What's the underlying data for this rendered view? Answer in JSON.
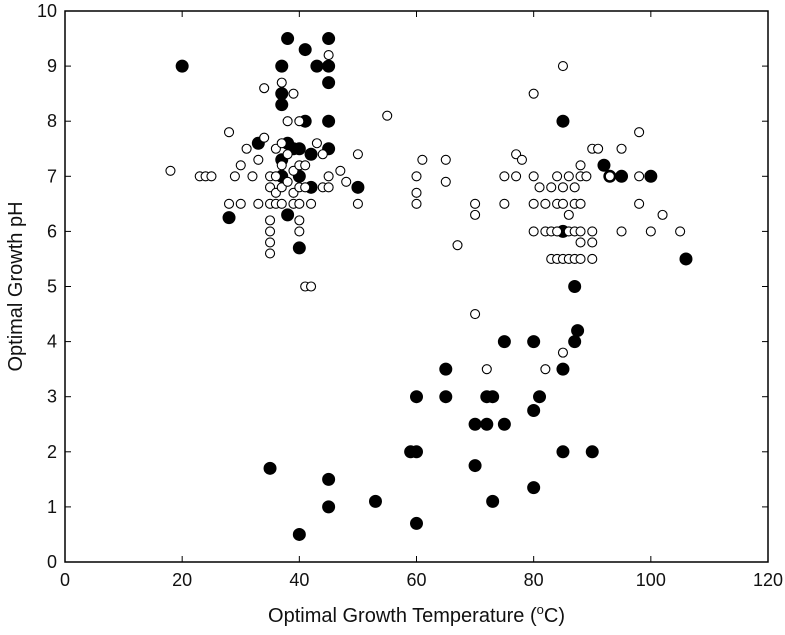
{
  "chart_data": {
    "type": "scatter",
    "title": "",
    "xlabel": {
      "prefix": "Optimal Growth Temperature (",
      "superscript": "o",
      "suffix": "C)"
    },
    "ylabel": "Optimal Growth pH",
    "xlim": [
      0,
      120
    ],
    "ylim": [
      0,
      10
    ],
    "x_ticks": [
      0,
      20,
      40,
      60,
      80,
      100,
      120
    ],
    "y_ticks": [
      0,
      1,
      2,
      3,
      4,
      5,
      6,
      7,
      8,
      9,
      10
    ],
    "grid": false,
    "legend": "none",
    "series": [
      {
        "marker": "filled-circle",
        "color": "#000000",
        "points": [
          [
            20,
            9
          ],
          [
            28,
            6.25
          ],
          [
            33,
            7.6
          ],
          [
            35,
            1.7
          ],
          [
            37,
            9
          ],
          [
            37,
            8.5
          ],
          [
            37,
            8.3
          ],
          [
            37,
            7.3
          ],
          [
            37,
            7
          ],
          [
            38,
            7.6
          ],
          [
            38,
            9.5
          ],
          [
            38,
            6.3
          ],
          [
            39,
            7.5
          ],
          [
            40,
            7.5
          ],
          [
            40,
            7
          ],
          [
            40,
            5.7
          ],
          [
            40,
            0.5
          ],
          [
            41,
            9.3
          ],
          [
            41,
            8
          ],
          [
            42,
            6.8
          ],
          [
            42,
            7.4
          ],
          [
            43,
            9
          ],
          [
            45,
            9.5
          ],
          [
            45,
            9
          ],
          [
            45,
            8.7
          ],
          [
            45,
            8
          ],
          [
            45,
            7.5
          ],
          [
            45,
            1.5
          ],
          [
            45,
            1
          ],
          [
            50,
            6.8
          ],
          [
            53,
            1.1
          ],
          [
            59,
            2
          ],
          [
            60,
            2
          ],
          [
            60,
            3
          ],
          [
            60,
            0.7
          ],
          [
            65,
            3.5
          ],
          [
            65,
            3
          ],
          [
            70,
            2.5
          ],
          [
            70,
            1.75
          ],
          [
            72,
            3
          ],
          [
            72,
            2.5
          ],
          [
            73,
            3
          ],
          [
            73,
            1.1
          ],
          [
            75,
            4
          ],
          [
            75,
            2.5
          ],
          [
            80,
            4
          ],
          [
            80,
            2.75
          ],
          [
            80,
            1.35
          ],
          [
            81,
            3
          ],
          [
            85,
            8
          ],
          [
            85,
            6
          ],
          [
            85,
            3.5
          ],
          [
            85,
            2
          ],
          [
            87,
            4
          ],
          [
            87,
            5
          ],
          [
            87.5,
            4.2
          ],
          [
            90,
            2
          ],
          [
            92,
            7.2
          ],
          [
            93,
            7
          ],
          [
            95,
            7
          ],
          [
            100,
            7
          ],
          [
            106,
            5.5
          ]
        ]
      },
      {
        "marker": "open-circle",
        "color": "#000000",
        "points": [
          [
            18,
            7.1
          ],
          [
            23,
            7
          ],
          [
            24,
            7
          ],
          [
            25,
            7
          ],
          [
            28,
            7.8
          ],
          [
            28,
            6.5
          ],
          [
            29,
            7
          ],
          [
            30,
            7.2
          ],
          [
            30,
            6.5
          ],
          [
            31,
            7.5
          ],
          [
            32,
            7
          ],
          [
            33,
            7.3
          ],
          [
            33,
            6.5
          ],
          [
            34,
            7.7
          ],
          [
            34,
            8.6
          ],
          [
            35,
            7
          ],
          [
            35,
            6.8
          ],
          [
            35,
            6.5
          ],
          [
            35,
            6
          ],
          [
            35,
            5.8
          ],
          [
            35,
            5.6
          ],
          [
            35,
            6.2
          ],
          [
            36,
            7.5
          ],
          [
            36,
            7
          ],
          [
            36,
            6.7
          ],
          [
            36,
            6.5
          ],
          [
            37,
            8.7
          ],
          [
            37,
            7.6
          ],
          [
            37,
            7.2
          ],
          [
            37,
            6.8
          ],
          [
            37,
            6.5
          ],
          [
            38,
            8
          ],
          [
            38,
            7.4
          ],
          [
            38,
            6.9
          ],
          [
            39,
            7.1
          ],
          [
            39,
            6.7
          ],
          [
            39,
            6.5
          ],
          [
            39,
            8.5
          ],
          [
            40,
            8
          ],
          [
            40,
            7.2
          ],
          [
            40,
            6.8
          ],
          [
            40,
            6.5
          ],
          [
            40,
            6.2
          ],
          [
            40,
            6
          ],
          [
            41,
            7.2
          ],
          [
            41,
            6.8
          ],
          [
            41,
            5
          ],
          [
            42,
            5
          ],
          [
            42,
            6.5
          ],
          [
            43,
            7.6
          ],
          [
            44,
            7.4
          ],
          [
            44,
            6.8
          ],
          [
            45,
            9.2
          ],
          [
            45,
            7
          ],
          [
            45,
            6.8
          ],
          [
            47,
            7.1
          ],
          [
            48,
            6.9
          ],
          [
            50,
            7.4
          ],
          [
            50,
            6.5
          ],
          [
            55,
            8.1
          ],
          [
            60,
            7
          ],
          [
            60,
            6.7
          ],
          [
            60,
            6.5
          ],
          [
            61,
            7.3
          ],
          [
            65,
            7.3
          ],
          [
            65,
            6.9
          ],
          [
            67,
            5.75
          ],
          [
            70,
            6.5
          ],
          [
            70,
            6.3
          ],
          [
            70,
            4.5
          ],
          [
            72,
            3.5
          ],
          [
            75,
            7
          ],
          [
            75,
            6.5
          ],
          [
            77,
            7
          ],
          [
            77,
            7.4
          ],
          [
            78,
            7.3
          ],
          [
            80,
            8.5
          ],
          [
            80,
            7
          ],
          [
            80,
            6.5
          ],
          [
            80,
            6
          ],
          [
            81,
            6.8
          ],
          [
            82,
            6.5
          ],
          [
            82,
            6
          ],
          [
            82,
            3.5
          ],
          [
            83,
            6.8
          ],
          [
            83,
            6
          ],
          [
            83,
            5.5
          ],
          [
            84,
            7
          ],
          [
            84,
            6.5
          ],
          [
            84,
            6
          ],
          [
            84,
            5.5
          ],
          [
            85,
            9
          ],
          [
            85,
            6.8
          ],
          [
            85,
            6.5
          ],
          [
            85,
            5.5
          ],
          [
            85,
            3.8
          ],
          [
            86,
            7
          ],
          [
            86,
            6.3
          ],
          [
            86,
            6
          ],
          [
            86,
            5.5
          ],
          [
            87,
            6.8
          ],
          [
            87,
            6.5
          ],
          [
            87,
            6
          ],
          [
            87,
            5.5
          ],
          [
            88,
            7
          ],
          [
            88,
            7.2
          ],
          [
            88,
            6.5
          ],
          [
            88,
            5.8
          ],
          [
            88,
            6
          ],
          [
            88,
            5.5
          ],
          [
            89,
            7
          ],
          [
            90,
            7.5
          ],
          [
            90,
            6
          ],
          [
            90,
            5.8
          ],
          [
            90,
            5.5
          ],
          [
            91,
            7.5
          ],
          [
            93,
            7
          ],
          [
            95,
            7.5
          ],
          [
            95,
            6
          ],
          [
            98,
            7.8
          ],
          [
            98,
            7
          ],
          [
            98,
            6.5
          ],
          [
            100,
            6
          ],
          [
            102,
            6.3
          ],
          [
            105,
            6
          ]
        ]
      }
    ]
  },
  "colors": {
    "axis": "#000000",
    "filled_marker": "#000000",
    "open_marker_fill": "#ffffff",
    "background": "#ffffff"
  }
}
